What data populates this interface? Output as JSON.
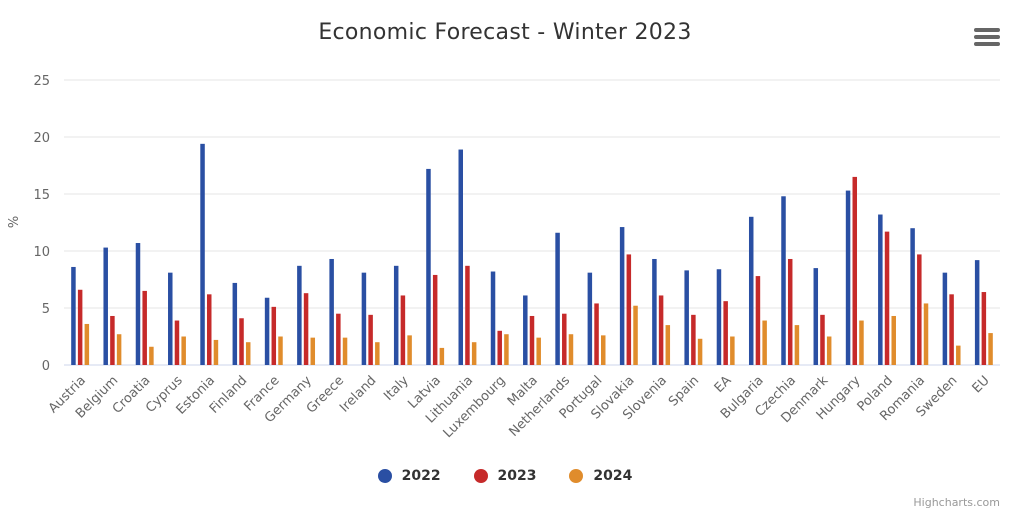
{
  "chart": {
    "title": "Economic Forecast - Winter 2023",
    "credits": "Highcharts.com",
    "colors": {
      "2022": "#2a4fa3",
      "2023": "#c62a2a",
      "2024": "#e08c2c"
    },
    "menu_icon": "hamburger-menu-icon"
  },
  "chart_data": {
    "type": "bar",
    "title": "Economic Forecast - Winter 2023",
    "ylabel": "%",
    "xlabel": "",
    "ylim": [
      0,
      25
    ],
    "yticks": [
      0,
      5,
      10,
      15,
      20,
      25
    ],
    "grid": true,
    "legend_position": "bottom-center",
    "categories": [
      "Austria",
      "Belgium",
      "Croatia",
      "Cyprus",
      "Estonia",
      "Finland",
      "France",
      "Germany",
      "Greece",
      "Ireland",
      "Italy",
      "Latvia",
      "Lithuania",
      "Luxembourg",
      "Malta",
      "Netherlands",
      "Portugal",
      "Slovakia",
      "Slovenia",
      "Spain",
      "EA",
      "Bulgaria",
      "Czechia",
      "Denmark",
      "Hungary",
      "Poland",
      "Romania",
      "Sweden",
      "EU"
    ],
    "series": [
      {
        "name": "2022",
        "color": "#2a4fa3",
        "values": [
          8.6,
          10.3,
          10.7,
          8.1,
          19.4,
          7.2,
          5.9,
          8.7,
          9.3,
          8.1,
          8.7,
          17.2,
          18.9,
          8.2,
          6.1,
          11.6,
          8.1,
          12.1,
          9.3,
          8.3,
          8.4,
          13.0,
          14.8,
          8.5,
          15.3,
          13.2,
          12.0,
          8.1,
          9.2
        ]
      },
      {
        "name": "2023",
        "color": "#c62a2a",
        "values": [
          6.6,
          4.3,
          6.5,
          3.9,
          6.2,
          4.1,
          5.1,
          6.3,
          4.5,
          4.4,
          6.1,
          7.9,
          8.7,
          3.0,
          4.3,
          4.5,
          5.4,
          9.7,
          6.1,
          4.4,
          5.6,
          7.8,
          9.3,
          4.4,
          16.5,
          11.7,
          9.7,
          6.2,
          6.4
        ]
      },
      {
        "name": "2024",
        "color": "#e08c2c",
        "values": [
          3.6,
          2.7,
          1.6,
          2.5,
          2.2,
          2.0,
          2.5,
          2.4,
          2.4,
          2.0,
          2.6,
          1.5,
          2.0,
          2.7,
          2.4,
          2.7,
          2.6,
          5.2,
          3.5,
          2.3,
          2.5,
          3.9,
          3.5,
          2.5,
          3.9,
          4.3,
          5.4,
          1.7,
          2.8
        ]
      }
    ]
  }
}
